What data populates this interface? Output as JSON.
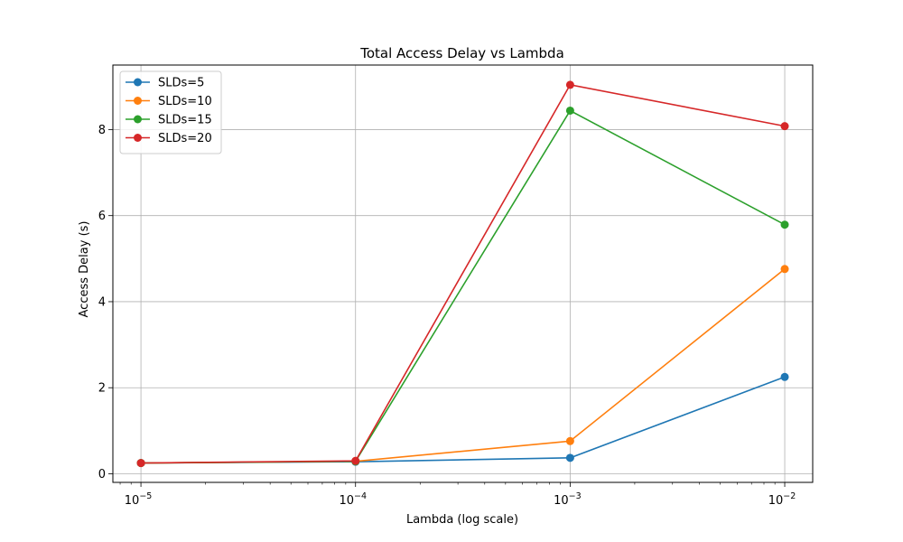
{
  "chart_data": {
    "type": "line",
    "title": "Total Access Delay vs Lambda",
    "xlabel": "Lambda (log scale)",
    "ylabel": "Access Delay (s)",
    "x_scale": "log",
    "x": [
      1e-05,
      0.0001,
      0.001,
      0.01
    ],
    "x_tick_labels": [
      {
        "base": "10",
        "exp": "−5"
      },
      {
        "base": "10",
        "exp": "−4"
      },
      {
        "base": "10",
        "exp": "−3"
      },
      {
        "base": "10",
        "exp": "−2"
      }
    ],
    "y_ticks": [
      "0",
      "2",
      "4",
      "6",
      "8"
    ],
    "xlim": [
      7.4e-06,
      0.0135
    ],
    "ylim": [
      -0.2,
      9.5
    ],
    "grid": true,
    "legend_position": "top-left",
    "series": [
      {
        "name": "SLDs=5",
        "color": "#1f77b4",
        "values": [
          0.25,
          0.28,
          0.37,
          2.25
        ]
      },
      {
        "name": "SLDs=10",
        "color": "#ff7f0e",
        "values": [
          0.25,
          0.29,
          0.76,
          4.76
        ]
      },
      {
        "name": "SLDs=15",
        "color": "#2ca02c",
        "values": [
          0.25,
          0.29,
          8.44,
          5.79
        ]
      },
      {
        "name": "SLDs=20",
        "color": "#d62728",
        "values": [
          0.25,
          0.3,
          9.04,
          8.08
        ]
      }
    ]
  }
}
